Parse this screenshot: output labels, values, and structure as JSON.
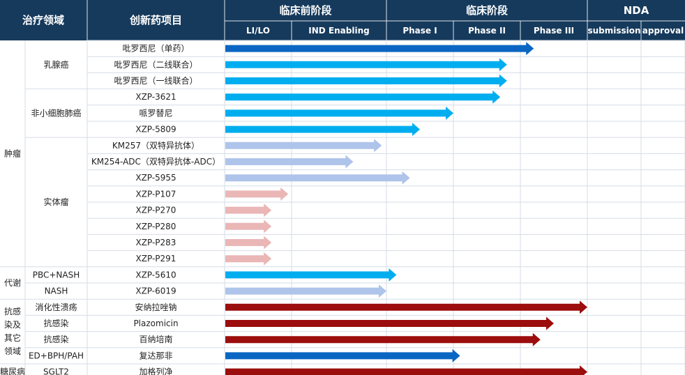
{
  "header": {
    "col_area": "治疗领域",
    "col_project": "创新药项目",
    "group_preclinical": "临床前阶段",
    "group_clinical": "临床阶段",
    "group_nda": "NDA",
    "stages": [
      "LI/LO",
      "IND Enabling",
      "Phase I",
      "Phase II",
      "Phase III",
      "submission",
      "approval"
    ]
  },
  "colors": {
    "header_bg": "#163a5c",
    "header_text": "#ffffff",
    "grid_line": "#d6dde6",
    "dark_blue": "#0a66c2",
    "light_blue": "#00aeef",
    "pale_blue": "#afc4ea",
    "pink": "#eab6b6",
    "dark_red": "#9c0d0d"
  },
  "areas": [
    {
      "label": "肿瘤",
      "start": 0,
      "end": 13
    },
    {
      "label": "代谢",
      "start": 14,
      "end": 15
    },
    {
      "label": "抗感\n染及\n其它\n领域",
      "start": 16,
      "end": 19
    },
    {
      "label": "糖尿病",
      "start": 20,
      "end": 20
    }
  ],
  "subareas": [
    {
      "label": "乳腺癌",
      "start": 0,
      "end": 2
    },
    {
      "label": "非小细胞肺癌",
      "start": 3,
      "end": 5
    },
    {
      "label": "实体瘤",
      "start": 6,
      "end": 13
    },
    {
      "label": "PBC+NASH",
      "start": 14,
      "end": 14
    },
    {
      "label": "NASH",
      "start": 15,
      "end": 15
    },
    {
      "label": "消化性溃疡",
      "start": 16,
      "end": 16
    },
    {
      "label": "抗感染",
      "start": 17,
      "end": 17
    },
    {
      "label": "抗感染",
      "start": 18,
      "end": 18
    },
    {
      "label": "ED+BPH/PAH",
      "start": 19,
      "end": 19
    },
    {
      "label": "SGLT2",
      "start": 20,
      "end": 20
    }
  ],
  "chart_data": {
    "type": "bar",
    "orientation": "horizontal",
    "x_categories": [
      "LI/LO",
      "IND Enabling",
      "Phase I",
      "Phase II",
      "Phase III",
      "submission",
      "approval"
    ],
    "progress_unit": "stage columns reached (0-7)",
    "projects": [
      {
        "name": "吡罗西尼（单药）",
        "progress": 4.2,
        "color": "dark_blue"
      },
      {
        "name": "吡罗西尼（二线联合）",
        "progress": 3.8,
        "color": "light_blue"
      },
      {
        "name": "吡罗西尼（一线联合）",
        "progress": 3.8,
        "color": "light_blue"
      },
      {
        "name": "XZP-3621",
        "progress": 3.7,
        "color": "light_blue"
      },
      {
        "name": "哌罗替尼",
        "progress": 3.0,
        "color": "light_blue"
      },
      {
        "name": "XZP-5809",
        "progress": 2.5,
        "color": "light_blue"
      },
      {
        "name": "KM257（双特异抗体）",
        "progress": 1.95,
        "color": "pale_blue"
      },
      {
        "name": "KM254-ADC（双特异抗体-ADC）",
        "progress": 1.65,
        "color": "pale_blue"
      },
      {
        "name": "XZP-5955",
        "progress": 2.35,
        "color": "pale_blue"
      },
      {
        "name": "XZP-P107",
        "progress": 0.95,
        "color": "pink"
      },
      {
        "name": "XZP-P270",
        "progress": 0.7,
        "color": "pink"
      },
      {
        "name": "XZP-P280",
        "progress": 0.7,
        "color": "pink"
      },
      {
        "name": "XZP-P283",
        "progress": 0.7,
        "color": "pink"
      },
      {
        "name": "XZP-P291",
        "progress": 0.7,
        "color": "pink"
      },
      {
        "name": "XZP-5610",
        "progress": 2.15,
        "color": "light_blue"
      },
      {
        "name": "XZP-6019",
        "progress": 2.0,
        "color": "pale_blue"
      },
      {
        "name": "安纳拉唑钠",
        "progress": 5.0,
        "color": "dark_red"
      },
      {
        "name": "Plazomicin",
        "progress": 4.5,
        "color": "dark_red"
      },
      {
        "name": "百纳培南",
        "progress": 4.3,
        "color": "dark_red"
      },
      {
        "name": "复达那非",
        "progress": 3.1,
        "color": "dark_blue"
      },
      {
        "name": "加格列净",
        "progress": 5.0,
        "color": "dark_red"
      }
    ]
  }
}
